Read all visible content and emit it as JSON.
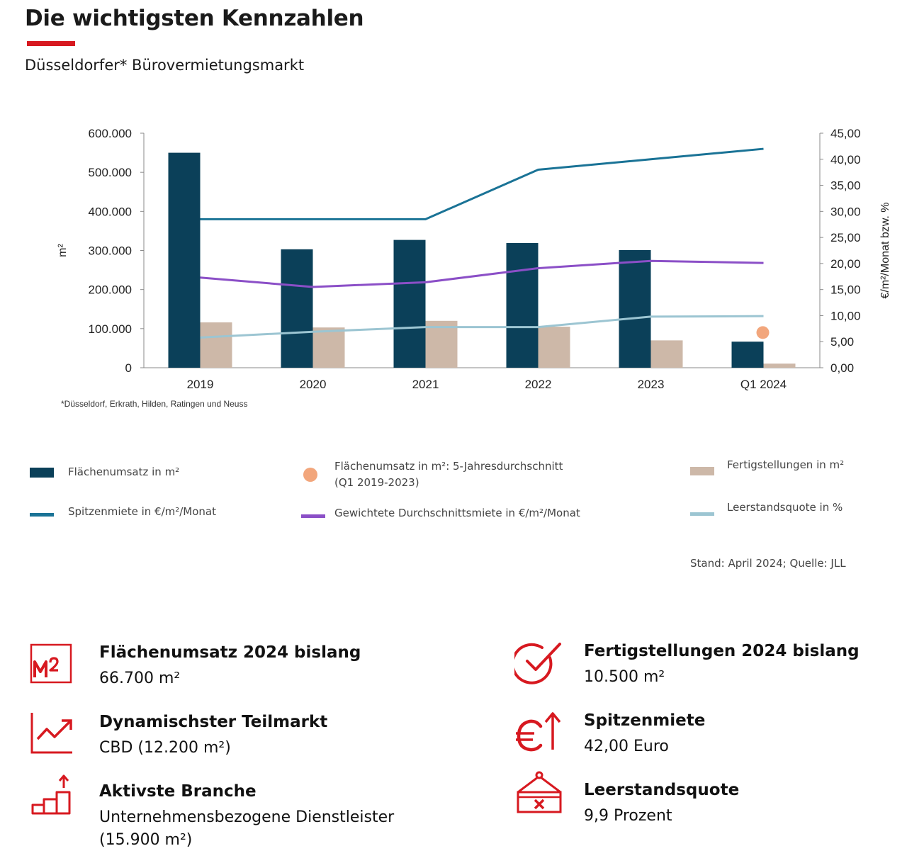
{
  "header": {
    "title": "Die wichtigsten Kennzahlen",
    "subtitle": "Düsseldorfer* Bürovermietungsmarkt"
  },
  "chart_data": {
    "type": "bar",
    "categories": [
      "2019",
      "2020",
      "2021",
      "2022",
      "2023",
      "Q1 2024"
    ],
    "series": [
      {
        "name": "Flächenumsatz in m²",
        "kind": "bar",
        "axis": "left",
        "color": "#0b4059",
        "values": [
          550000,
          303000,
          327000,
          319000,
          301000,
          66700
        ]
      },
      {
        "name": "Fertigstellungen in m²",
        "kind": "bar",
        "axis": "left",
        "color": "#cdb8a8",
        "values": [
          116000,
          103000,
          120000,
          105000,
          70000,
          10500
        ]
      },
      {
        "name": "Flächenumsatz in m²: 5-Jahresdurchschnitt (Q1 2019-2023)",
        "kind": "point",
        "axis": "left",
        "color": "#f2a67c",
        "values": [
          null,
          null,
          null,
          null,
          null,
          90000
        ]
      },
      {
        "name": "Spitzenmiete in €/m²/Monat",
        "kind": "line",
        "axis": "right",
        "color": "#1a7396",
        "values": [
          28.5,
          28.5,
          28.5,
          38.0,
          40.0,
          42.0
        ]
      },
      {
        "name": "Gewichtete Durchschnittsmiete in €/m²/Monat",
        "kind": "line",
        "axis": "right",
        "color": "#8b4fc7",
        "values": [
          17.3,
          15.5,
          16.4,
          19.1,
          20.5,
          20.1
        ]
      },
      {
        "name": "Leerstandsquote in %",
        "kind": "line",
        "axis": "right",
        "color": "#9cc5d2",
        "values": [
          5.8,
          6.9,
          7.8,
          7.8,
          9.8,
          9.9
        ]
      }
    ],
    "left_axis": {
      "label": "m²",
      "ylim": [
        0,
        600000
      ],
      "ticks": [
        "0",
        "100.000",
        "200.000",
        "300.000",
        "400.000",
        "500.000",
        "600.000"
      ]
    },
    "right_axis": {
      "label": "€/m²/Monat bzw. %",
      "ylim": [
        0,
        45
      ],
      "ticks": [
        "0,00",
        "5,00",
        "10,00",
        "15,00",
        "20,00",
        "25,00",
        "30,00",
        "35,00",
        "40,00",
        "45,00"
      ]
    },
    "grid": false,
    "footnote": "*Düsseldorf, Erkrath, Hilden, Ratingen und Neuss"
  },
  "legend": {
    "bar_turnover": "Flächenumsatz in m²",
    "avg_line1": "Flächenumsatz in m²: 5-Jahresdurchschnitt",
    "avg_line2": "(Q1 2019-2023)",
    "completions": "Fertigstellungen in m²",
    "prime_rent": "Spitzenmiete in €/m²/Monat",
    "weighted_rent": "Gewichtete Durchschnittsmiete in €/m²/Monat",
    "vacancy": "Leerstandsquote in %"
  },
  "source": "Stand: April 2024; Quelle: JLL",
  "kpis": {
    "turnover": {
      "title": "Flächenumsatz 2024 bislang",
      "value": "66.700 m²",
      "icon": "m2-icon"
    },
    "completions": {
      "title": "Fertigstellungen 2024 bislang",
      "value": "10.500 m²",
      "icon": "checkmark-icon"
    },
    "submarket": {
      "title": "Dynamischster Teilmarkt",
      "value": "CBD (12.200 m²)",
      "icon": "trend-chart-icon"
    },
    "prime_rent": {
      "title": "Spitzenmiete",
      "value": "42,00 Euro",
      "icon": "euro-up-icon"
    },
    "sector": {
      "title": "Aktivste Branche",
      "value": "Unternehmensbezogene Dienstleister (15.900 m²)",
      "icon": "stairs-up-icon"
    },
    "vacancy": {
      "title": "Leerstandsquote",
      "value": "9,9 Prozent",
      "icon": "vacancy-sign-icon"
    }
  },
  "colors": {
    "accent": "#d71920"
  }
}
